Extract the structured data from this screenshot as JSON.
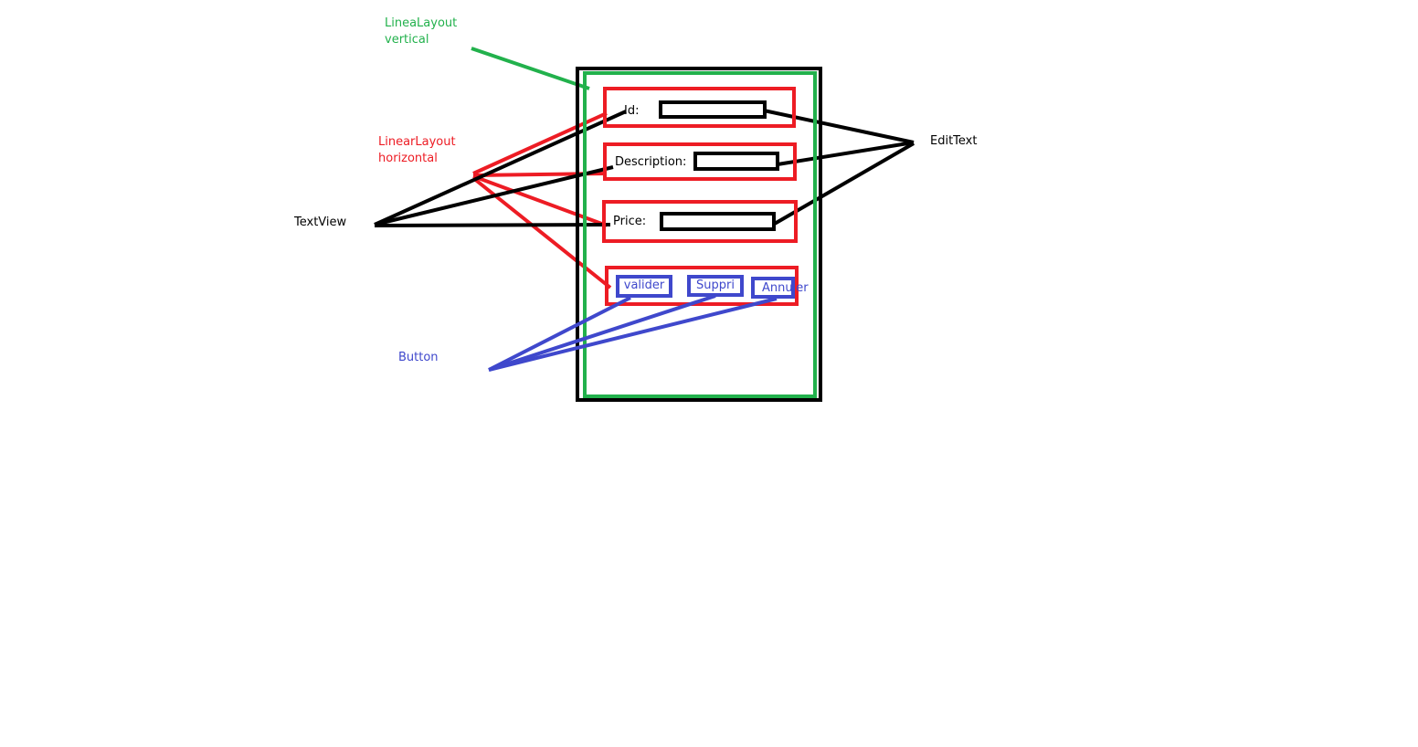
{
  "annotations": {
    "linear_layout_vertical": [
      "LineaLayout",
      "vertical"
    ],
    "linear_layout_horizontal": [
      "LinearLayout",
      "horizontal"
    ],
    "textview": "TextView",
    "edittext": "EditText",
    "button": "Button"
  },
  "form": {
    "rows": [
      {
        "label": "Id:"
      },
      {
        "label": "Description:"
      },
      {
        "label": "Price:"
      }
    ],
    "buttons": [
      "valider",
      "Suppri",
      "Annuler"
    ]
  },
  "colors": {
    "vertical_layout": "#22b14c",
    "horizontal_layout": "#ed1c24",
    "textview_edittext": "#000000",
    "button": "#3f48cc"
  }
}
